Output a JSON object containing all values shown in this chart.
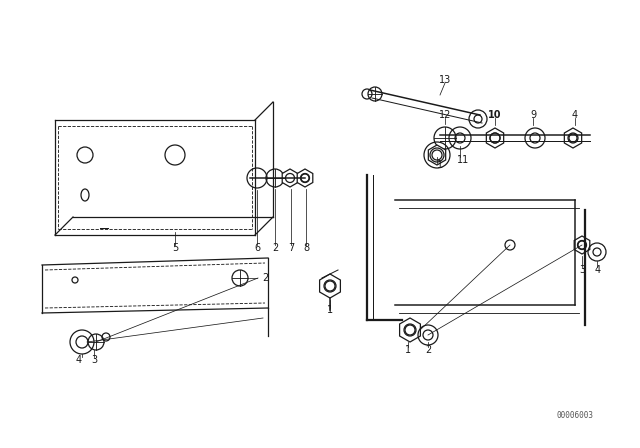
{
  "bg_color": "#ffffff",
  "line_color": "#1a1a1a",
  "fig_width": 6.4,
  "fig_height": 4.48,
  "watermark": "00006003"
}
